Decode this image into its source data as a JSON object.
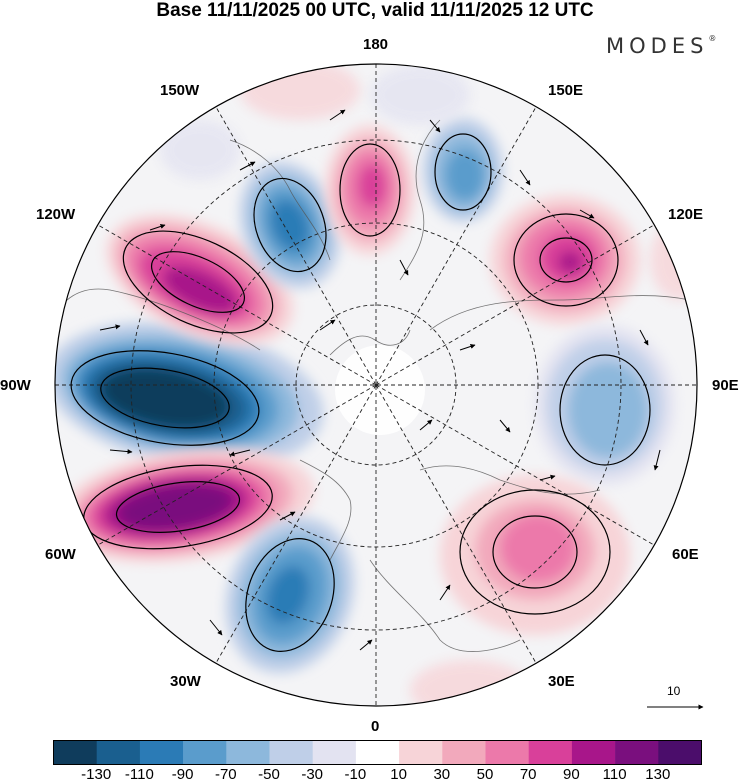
{
  "title": "Base 11/11/2025 00 UTC, valid 11/11/2025 12 UTC",
  "brand": "MODES",
  "brand_mark": "®",
  "longitude_labels": {
    "lon_180": "180",
    "lon_150e": "150E",
    "lon_120e": "120E",
    "lon_90e": "90E",
    "lon_60e": "60E",
    "lon_30e": "30E",
    "lon_0": "0",
    "lon_30w": "30W",
    "lon_60w": "60W",
    "lon_90w": "90W",
    "lon_120w": "120W",
    "lon_150w": "150W"
  },
  "colorbar": {
    "ticks": [
      "-130",
      "-110",
      "-90",
      "-70",
      "-50",
      "-30",
      "-10",
      "10",
      "30",
      "50",
      "70",
      "90",
      "110",
      "130"
    ],
    "colors": [
      "#0f3c5c",
      "#1a5f8f",
      "#2b7bb6",
      "#5a9ccc",
      "#8db8dc",
      "#bfcfe8",
      "#e3e3f1",
      "#ffffff",
      "#f7d4d8",
      "#f2a9bc",
      "#ec79aa",
      "#d9409a",
      "#a8168a",
      "#7a0f7e",
      "#4b0d6b"
    ]
  },
  "vector_reference": {
    "label": "10"
  },
  "chart_data": {
    "type": "polar-stereographic-map",
    "projection": "north polar stereographic, 0 at bottom, 180 at top",
    "field_range": [
      -130,
      130
    ],
    "anomaly_centers": [
      {
        "name": "blue-atlantic-60W-90W",
        "sign": "negative",
        "peak": -130
      },
      {
        "name": "purple-atlantic-60W",
        "sign": "positive",
        "peak": 130
      },
      {
        "name": "magenta-pacific-120W",
        "sign": "positive",
        "peak": 110
      },
      {
        "name": "blue-pacific-150W",
        "sign": "negative",
        "peak": -90
      },
      {
        "name": "pink-dateline",
        "sign": "positive",
        "peak": 90
      },
      {
        "name": "blue-east-siberia",
        "sign": "negative",
        "peak": -70
      },
      {
        "name": "magenta-120E",
        "sign": "positive",
        "peak": 110
      },
      {
        "name": "blue-90E",
        "sign": "negative",
        "peak": -50
      },
      {
        "name": "pink-60E",
        "sign": "positive",
        "peak": 70
      },
      {
        "name": "blue-30W",
        "sign": "negative",
        "peak": -90
      }
    ]
  }
}
